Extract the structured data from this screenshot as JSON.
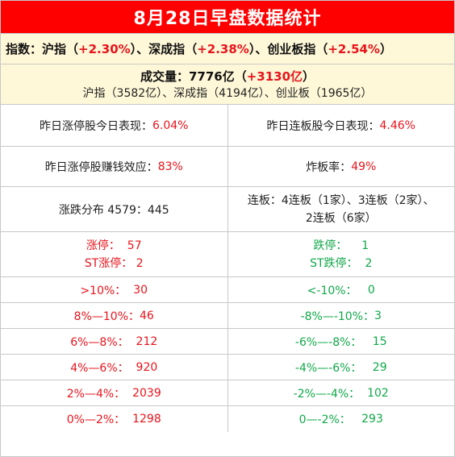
{
  "title": "8月28日早盘数据统计",
  "index": {
    "label": "指数：",
    "sh_name": "沪指",
    "sh_open": "（",
    "sh_value": "+2.30%",
    "sh_close": "）、",
    "sz_name": "深成指",
    "sz_open": "（",
    "sz_value": "+2.38%",
    "sz_close": "）、",
    "cy_name": "创业板指",
    "cy_open": "（",
    "cy_value": "+2.54%",
    "cy_close": "）"
  },
  "volume": {
    "label": "成交量：7776亿（",
    "change": "+3130亿",
    "close": "）",
    "breakdown": "沪指（3582亿）、深成指（4194亿）、创业板（1965亿）"
  },
  "stats": {
    "limitup_perf_label": "昨日涨停股今日表现：",
    "limitup_perf_value": "6.04%",
    "streak_perf_label": "昨日连板股今日表现：",
    "streak_perf_value": "4.46%",
    "profit_label": "昨日涨停股赚钱效应：",
    "profit_value": "83%",
    "burst_label": "炸板率：",
    "burst_value": "49%",
    "dist_text": "涨跌分布 4579：445",
    "streak_line1": "连板：4连板（1家）、3连板（2家）、",
    "streak_line2": "2连板（6家）"
  },
  "limits": {
    "up_label": "涨停：",
    "up_value": "57",
    "st_up_label": "ST涨停：",
    "st_up_value": "2",
    "down_label": "跌停：",
    "down_value": "1",
    "st_down_label": "ST跌停：",
    "st_down_value": "2"
  },
  "distribution": [
    {
      "up_label": ">10%：",
      "up_value": "30",
      "down_label": "<-10%：",
      "down_value": "0"
    },
    {
      "up_label": "8%—10%：",
      "up_value": "46",
      "down_label": "-8%—-10%：",
      "down_value": "3"
    },
    {
      "up_label": "6%—8%：",
      "up_value": "212",
      "down_label": "-6%—-8%：",
      "down_value": "15"
    },
    {
      "up_label": "4%—6%：",
      "up_value": "920",
      "down_label": "-4%—-6%：",
      "down_value": "29"
    },
    {
      "up_label": "2%—4%：",
      "up_value": "2039",
      "down_label": "-2%—-4%：",
      "down_value": "102"
    },
    {
      "up_label": "0%—2%：",
      "up_value": "1298",
      "down_label": "0—-2%：",
      "down_value": "293"
    }
  ],
  "colors": {
    "header_bg": "#ff0000",
    "up": "#e8141c",
    "down": "#10a84a",
    "highlight_bg": "#fff8d8"
  }
}
